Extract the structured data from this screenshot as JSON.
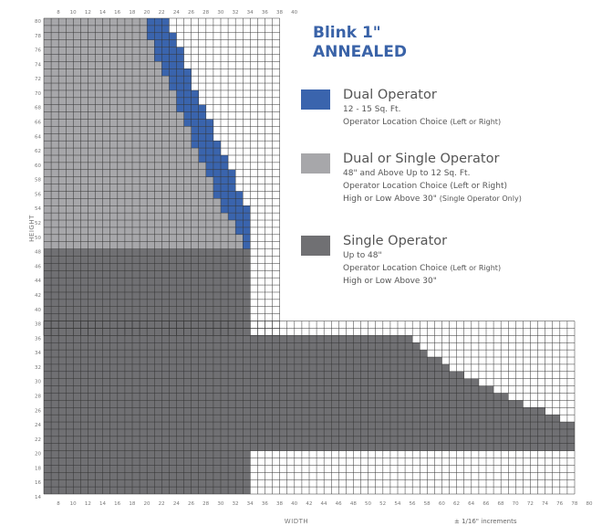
{
  "chart_data": {
    "type": "heatmap",
    "title": "Blink 1\"",
    "subtitle": "ANNEALED",
    "xlabel": "WIDTH",
    "ylabel": "HEIGHT",
    "x_range": [
      8,
      80
    ],
    "y_range": [
      14,
      80
    ],
    "x_ticks": [
      8,
      10,
      12,
      14,
      16,
      18,
      20,
      22,
      24,
      26,
      28,
      30,
      32,
      34,
      36,
      38,
      40,
      42,
      44,
      46,
      48,
      50,
      52,
      54,
      56,
      58,
      60,
      62,
      64,
      66,
      68,
      70,
      72,
      74,
      76,
      78,
      80
    ],
    "top_x_ticks": [
      8,
      10,
      12,
      14,
      16,
      18,
      20,
      22,
      24,
      26,
      28,
      30,
      32,
      34,
      36,
      38,
      40
    ],
    "y_ticks": [
      80,
      78,
      76,
      74,
      72,
      70,
      68,
      66,
      64,
      62,
      60,
      58,
      56,
      54,
      52,
      50,
      48,
      46,
      44,
      42,
      40,
      38,
      36,
      34,
      32,
      30,
      28,
      26,
      24,
      22,
      20,
      18,
      16,
      14
    ],
    "footnote": "± 1/16\" increments",
    "series": [
      {
        "name": "Dual Operator",
        "color": "#3a64ad",
        "details": [
          "12 - 15 Sq. Ft."
        ],
        "location_main": "Operator Location Choice",
        "location_small": "(Left or Right)",
        "location_extra": ""
      },
      {
        "name": "Dual or Single Operator",
        "color": "#a7a7aa",
        "details": [
          "48\" and Above Up to 12 Sq. Ft.",
          "Operator Location Choice (Left or Right)"
        ],
        "location_main": "High or Low Above 30\"",
        "location_small": "(Single Operator Only)",
        "location_extra": ""
      },
      {
        "name": "Single Operator",
        "color": "#707073",
        "details": [
          "Up to 48\""
        ],
        "location_main": "Operator Location Choice",
        "location_small": "(Left or Right)",
        "location_extra": "High or Low Above 30\""
      }
    ],
    "regions": {
      "single": [
        {
          "w": [
            8,
            36
          ],
          "h": [
            14,
            48
          ]
        },
        {
          "w": [
            36,
            42
          ],
          "h": [
            20,
            36
          ]
        },
        {
          "w": [
            42,
            80
          ],
          "h": [
            20,
            36
          ]
        }
      ],
      "single_staircase_top_h": [
        [
          58,
          36
        ],
        [
          59,
          35
        ],
        [
          60,
          34
        ],
        [
          62,
          33
        ],
        [
          63,
          32
        ],
        [
          65,
          31
        ],
        [
          67,
          30
        ],
        [
          69,
          29
        ],
        [
          71,
          28
        ],
        [
          73,
          27
        ],
        [
          76,
          26
        ],
        [
          78,
          25
        ],
        [
          80,
          24
        ]
      ],
      "dual_blue_rows": [
        {
          "h": 80,
          "w": [
            22,
            25
          ]
        },
        {
          "h": 79,
          "w": [
            22,
            25
          ]
        },
        {
          "h": 78,
          "w": [
            22,
            26
          ]
        },
        {
          "h": 77,
          "w": [
            23,
            26
          ]
        },
        {
          "h": 76,
          "w": [
            23,
            27
          ]
        },
        {
          "h": 75,
          "w": [
            23,
            27
          ]
        },
        {
          "h": 74,
          "w": [
            24,
            27
          ]
        },
        {
          "h": 73,
          "w": [
            24,
            28
          ]
        },
        {
          "h": 72,
          "w": [
            25,
            28
          ]
        },
        {
          "h": 71,
          "w": [
            25,
            28
          ]
        },
        {
          "h": 70,
          "w": [
            26,
            29
          ]
        },
        {
          "h": 69,
          "w": [
            26,
            29
          ]
        },
        {
          "h": 68,
          "w": [
            26,
            30
          ]
        },
        {
          "h": 67,
          "w": [
            27,
            30
          ]
        },
        {
          "h": 66,
          "w": [
            27,
            31
          ]
        },
        {
          "h": 65,
          "w": [
            28,
            31
          ]
        },
        {
          "h": 64,
          "w": [
            28,
            31
          ]
        },
        {
          "h": 63,
          "w": [
            28,
            32
          ]
        },
        {
          "h": 62,
          "w": [
            29,
            32
          ]
        },
        {
          "h": 61,
          "w": [
            29,
            33
          ]
        },
        {
          "h": 60,
          "w": [
            30,
            33
          ]
        },
        {
          "h": 59,
          "w": [
            30,
            34
          ]
        },
        {
          "h": 58,
          "w": [
            31,
            34
          ]
        },
        {
          "h": 57,
          "w": [
            31,
            34
          ]
        },
        {
          "h": 56,
          "w": [
            31,
            35
          ]
        },
        {
          "h": 55,
          "w": [
            32,
            35
          ]
        },
        {
          "h": 54,
          "w": [
            32,
            36
          ]
        },
        {
          "h": 53,
          "w": [
            33,
            36
          ]
        },
        {
          "h": 52,
          "w": [
            34,
            36
          ]
        },
        {
          "h": 51,
          "w": [
            34,
            36
          ]
        },
        {
          "h": 50,
          "w": [
            35,
            36
          ]
        },
        {
          "h": 49,
          "w": [
            35,
            36
          ]
        }
      ],
      "grid_outline": {
        "upper": {
          "w": [
            8,
            40
          ],
          "h": [
            36,
            80
          ]
        },
        "lower": {
          "w": [
            8,
            80
          ],
          "h": [
            14,
            38
          ]
        }
      }
    }
  }
}
